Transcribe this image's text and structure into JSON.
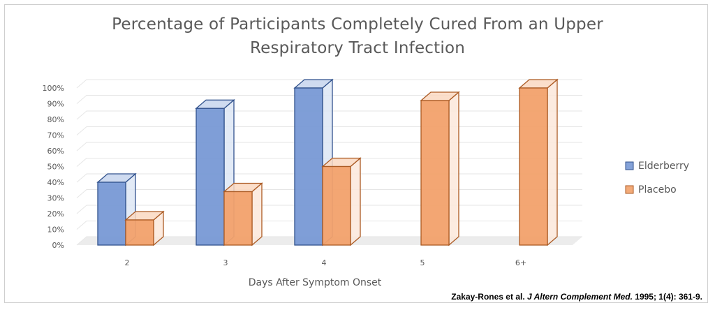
{
  "chart_data": {
    "type": "bar",
    "title_lines": [
      "Percentage of Participants Completely Cured From an Upper",
      "Respiratory Tract Infection"
    ],
    "xlabel": "Days After Symptom  Onset",
    "ylabel": "",
    "categories": [
      "2",
      "3",
      "4",
      "5",
      "6+"
    ],
    "y_ticks": [
      "0%",
      "10%",
      "20%",
      "30%",
      "40%",
      "50%",
      "60%",
      "70%",
      "80%",
      "90%",
      "100%"
    ],
    "ylim": [
      0,
      100
    ],
    "grid": true,
    "style": "3d-clustered-column",
    "legend_position": "right",
    "series": [
      {
        "name": "Elderberry",
        "color": "#4472c4",
        "values": [
          40,
          87,
          100,
          0,
          0
        ]
      },
      {
        "name": "Placebo",
        "color": "#ed7d31",
        "values": [
          16,
          34,
          50,
          92,
          100
        ]
      }
    ]
  },
  "citation": {
    "authors": "Zakay-Rones et al.",
    "journal": "J Altern Complement Med.",
    "details": "1995; 1(4): 361-9."
  }
}
